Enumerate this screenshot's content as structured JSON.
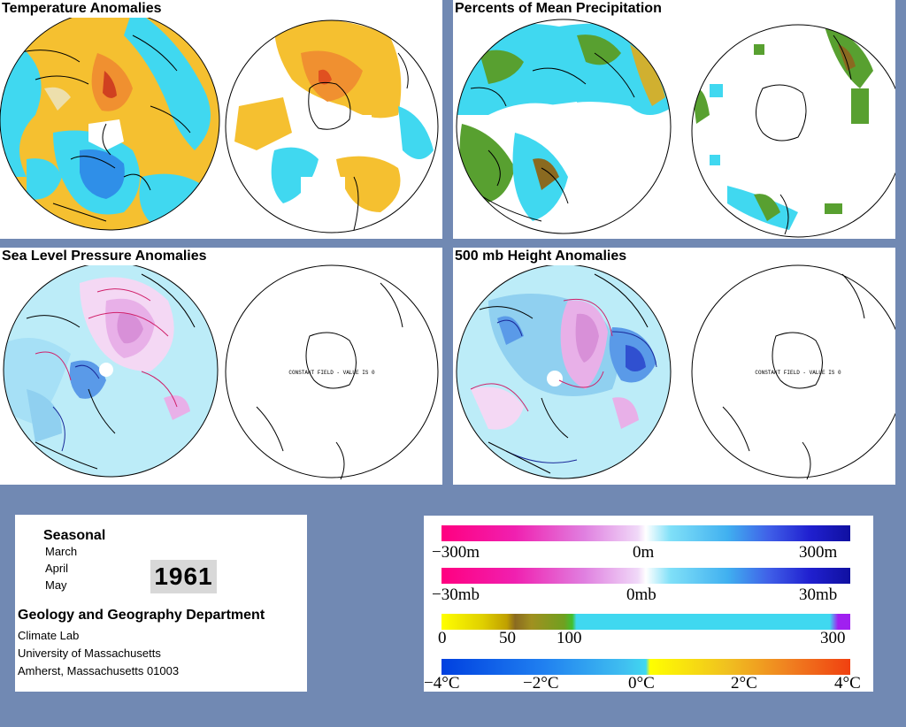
{
  "panels": {
    "temperature": {
      "title": "Temperature Anomalies"
    },
    "precipitation": {
      "title": "Percents of Mean Precipitation"
    },
    "slp": {
      "title": "Sea Level Pressure Anomalies",
      "constant_field_note": "CONSTANT FIELD - VALUE IS 0"
    },
    "height500": {
      "title": "500 mb Height Anomalies",
      "constant_field_note": "CONSTANT FIELD - VALUE IS 0"
    }
  },
  "info": {
    "period_label": "Seasonal",
    "months": [
      "March",
      "April",
      "May"
    ],
    "year": "1961",
    "department": "Geology and Geography Department",
    "lab": "Climate Lab",
    "university": "University of Massachusetts",
    "address": "Amherst, Massachusetts 01003"
  },
  "legends": {
    "height": {
      "labels": [
        "−300m",
        "0m",
        "300m"
      ]
    },
    "pressure": {
      "labels": [
        "−30mb",
        "0mb",
        "30mb"
      ]
    },
    "precip": {
      "labels": [
        "0",
        "50",
        "100",
        "300"
      ]
    },
    "temp": {
      "labels": [
        "−4°C",
        "−2°C",
        "0°C",
        "2°C",
        "4°C"
      ]
    }
  },
  "colors": {
    "background": "#7189b3",
    "warm": "#f0a020",
    "cold": "#1e7fe0",
    "neutral": "#40d8f0",
    "positive_pressure": "#e0a0e0",
    "negative_pressure": "#4a8ae8",
    "contour_positive": "#d0206a",
    "contour_negative": "#1a2a9a",
    "wet_green": "#58a030",
    "dry_brown": "#8a6a20"
  }
}
